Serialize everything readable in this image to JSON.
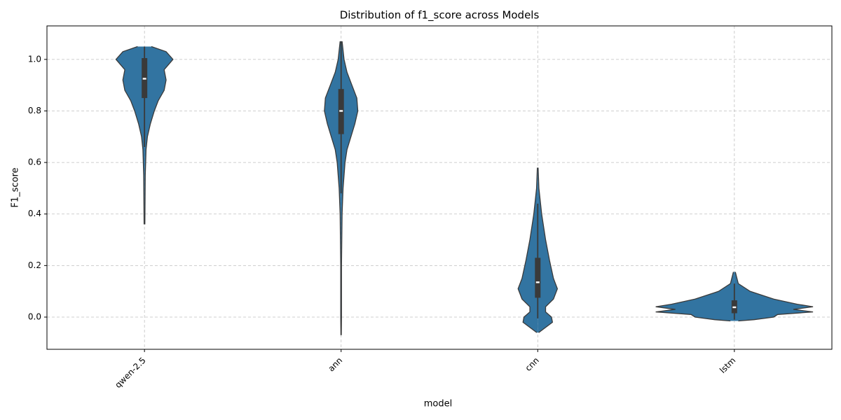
{
  "chart_data": {
    "type": "violin",
    "title": "Distribution of f1_score across Models",
    "xlabel": "model",
    "ylabel": "F1_score",
    "categories": [
      "qwen-2.5",
      "ann",
      "cnn",
      "lstm"
    ],
    "color": "#3274a1",
    "edge_color": "#3a3a3a",
    "grid": true,
    "xlim": [
      -0.496,
      3.496
    ],
    "ylim": [
      -0.125,
      1.13
    ],
    "yticks": [
      {
        "value": 0,
        "label": "0.0"
      },
      0.2,
      0.4,
      0.6,
      0.8,
      {
        "value": 1,
        "label": "1.0"
      }
    ],
    "violins": [
      {
        "y": [
          1.05,
          1.03,
          1.0,
          0.96,
          0.92,
          0.88,
          0.84,
          0.8,
          0.75,
          0.7,
          0.65,
          0.55,
          0.45,
          0.36
        ],
        "half_width": [
          0.035,
          0.11,
          0.145,
          0.1,
          0.11,
          0.1,
          0.07,
          0.05,
          0.03,
          0.015,
          0.008,
          0.004,
          0.003,
          0.002
        ],
        "q1": 0.85,
        "median": 0.925,
        "q3": 1.005,
        "whisker_low": 0.66,
        "whisker_high": 1.05
      },
      {
        "y": [
          1.07,
          1.0,
          0.95,
          0.9,
          0.85,
          0.8,
          0.75,
          0.7,
          0.65,
          0.6,
          0.5,
          0.4,
          0.2,
          0.0,
          -0.07
        ],
        "half_width": [
          0.005,
          0.015,
          0.03,
          0.055,
          0.08,
          0.085,
          0.07,
          0.05,
          0.03,
          0.02,
          0.01,
          0.005,
          0.002,
          0.002,
          0.001
        ],
        "q1": 0.71,
        "median": 0.8,
        "q3": 0.885,
        "whisker_low": 0.48,
        "whisker_high": 1.07
      },
      {
        "y": [
          0.58,
          0.5,
          0.4,
          0.3,
          0.22,
          0.15,
          0.11,
          0.07,
          0.04,
          0.02,
          0.0,
          -0.02,
          -0.04,
          -0.06
        ],
        "half_width": [
          0.002,
          0.006,
          0.02,
          0.04,
          0.06,
          0.08,
          0.1,
          0.08,
          0.04,
          0.04,
          0.07,
          0.075,
          0.04,
          0.005
        ],
        "q1": 0.075,
        "median": 0.135,
        "q3": 0.23,
        "whisker_low": -0.005,
        "whisker_high": 0.44
      },
      {
        "y": [
          0.175,
          0.13,
          0.1,
          0.07,
          0.05,
          0.04,
          0.03,
          0.02,
          0.01,
          0.0,
          -0.01,
          -0.015
        ],
        "half_width": [
          0.005,
          0.02,
          0.08,
          0.2,
          0.32,
          0.4,
          0.3,
          0.4,
          0.22,
          0.2,
          0.1,
          0.02
        ],
        "q1": 0.015,
        "median": 0.038,
        "q3": 0.065,
        "whisker_low": -0.01,
        "whisker_high": 0.13
      }
    ]
  }
}
